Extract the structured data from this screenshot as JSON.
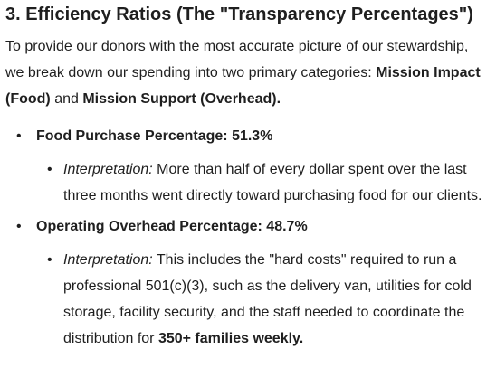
{
  "section": {
    "title": "3. Efficiency Ratios (The \"Transparency Percentages\")"
  },
  "intro": {
    "text_before": "To provide our donors with the most accurate picture of our stewardship, we break down our spending into two primary categories: ",
    "category_one": "Mission Impact (Food)",
    "connector": " and ",
    "category_two": "Mission Support (Overhead).",
    "text_after": ""
  },
  "metrics": [
    {
      "bullet": "•",
      "title": "Food Purchase Percentage: 51.3%",
      "sub_bullet": "•",
      "interpretation_label": "Interpretation:",
      "interpretation_text": " More than half of every dollar spent over the last three months went directly toward purchasing food for our clients.",
      "interpretation_bold_tail": "",
      "interpretation_end": ""
    },
    {
      "bullet": "•",
      "title": "Operating Overhead Percentage: 48.7%",
      "sub_bullet": "•",
      "interpretation_label": "Interpretation:",
      "interpretation_text": " This includes the \"hard costs\" required to run a professional 501(c)(3), such as the delivery van, utilities for cold storage, facility security, and the staff needed to coordinate the distribution for ",
      "interpretation_bold_tail": "350+ families weekly.",
      "interpretation_end": ""
    }
  ]
}
